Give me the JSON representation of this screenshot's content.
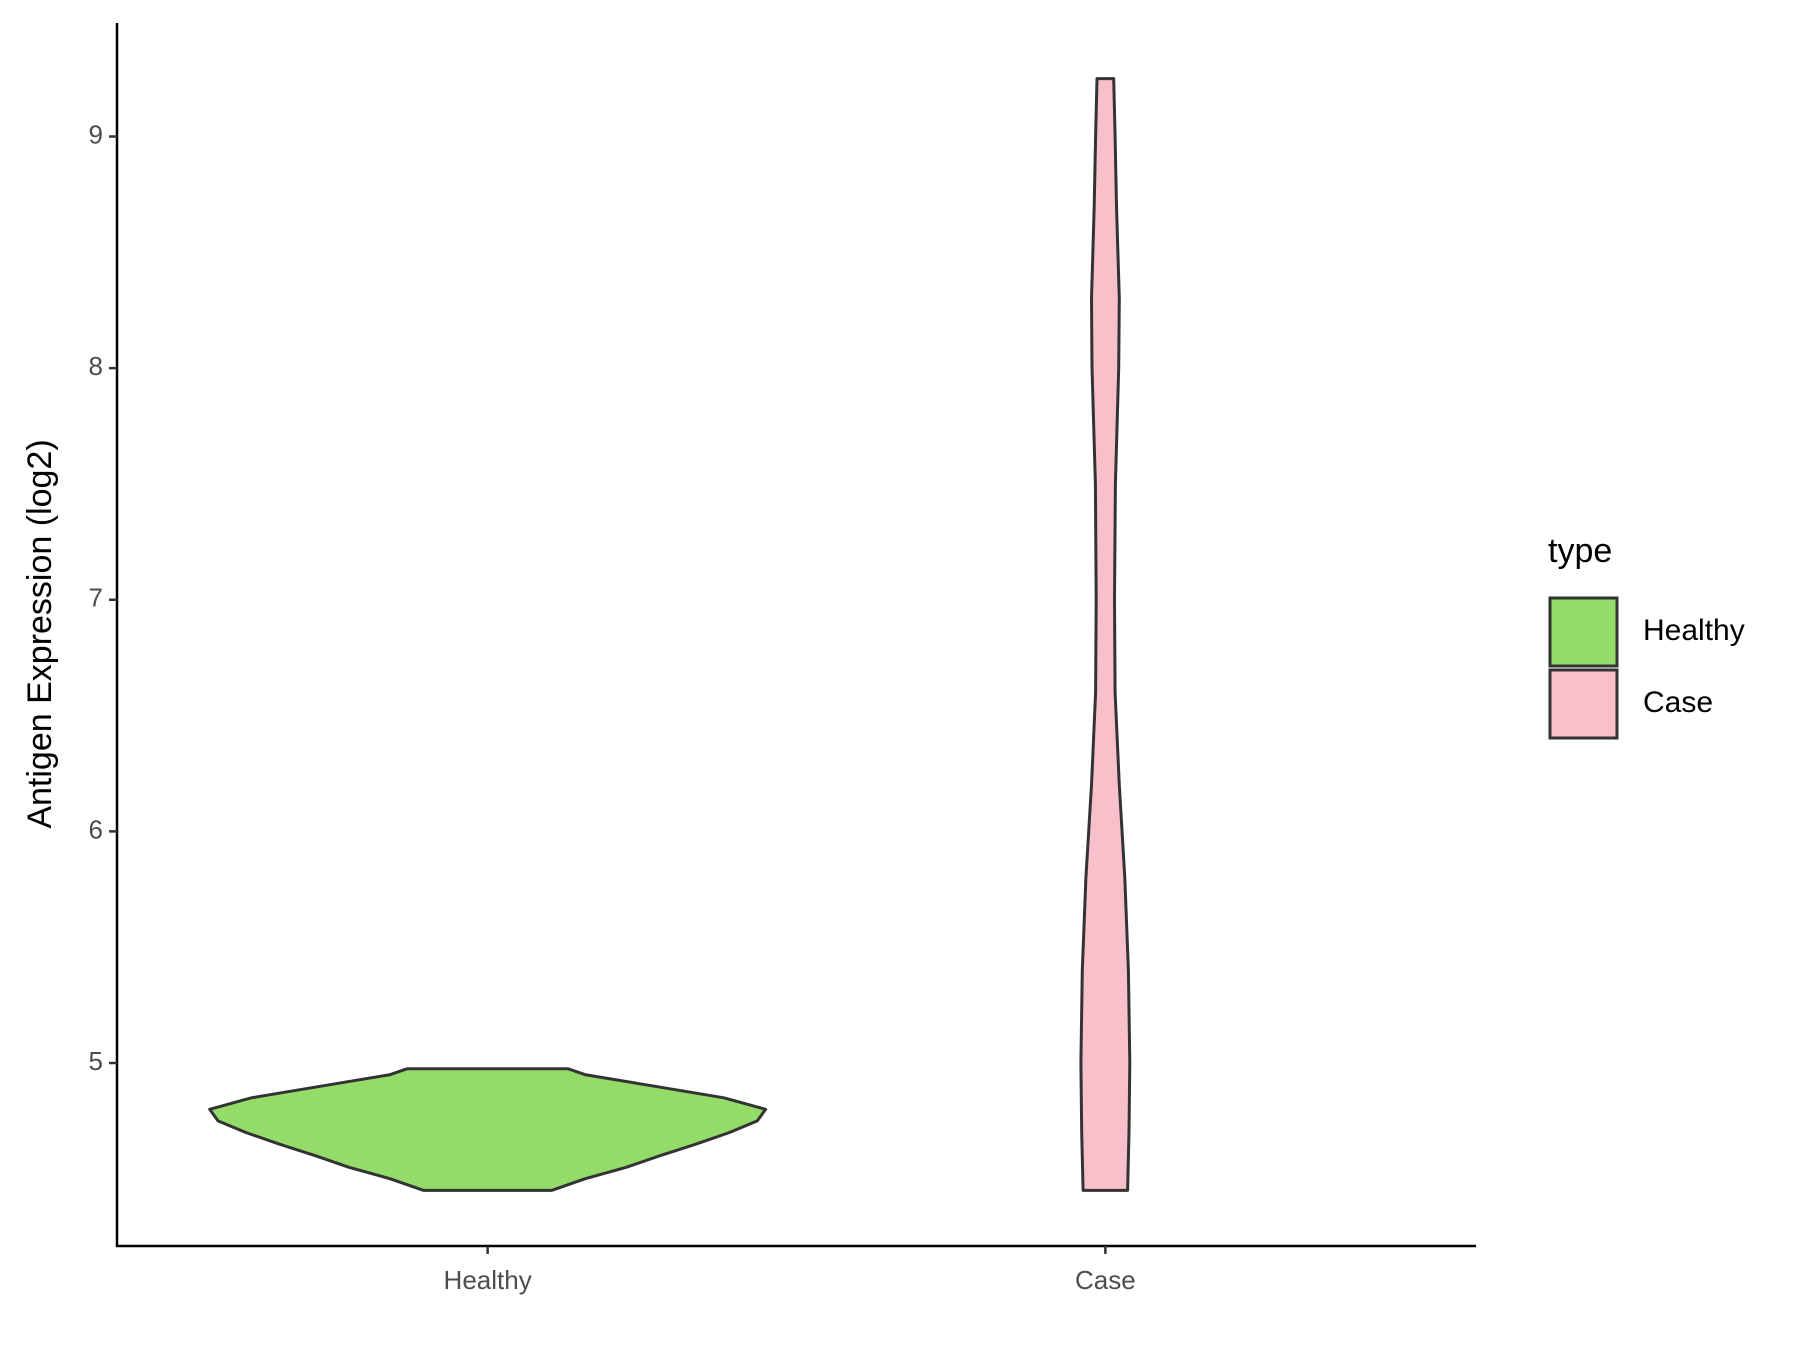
{
  "chart_data": {
    "type": "violin",
    "y_label": "Antigen Expression (log2)",
    "categories": [
      "Healthy",
      "Case"
    ],
    "series": [
      {
        "name": "Healthy",
        "color": "#93dc6a",
        "y": [
          4.45,
          4.5,
          4.55,
          4.6,
          4.65,
          4.7,
          4.75,
          4.8,
          4.85,
          4.9,
          4.95,
          4.975
        ],
        "density": [
          0.23,
          0.35,
          0.5,
          0.62,
          0.75,
          0.87,
          0.97,
          1,
          0.85,
          0.6,
          0.35,
          0.29
        ]
      },
      {
        "name": "Case",
        "color": "#f7c0cb",
        "y": [
          4.45,
          4.7,
          5.0,
          5.4,
          5.8,
          6.2,
          6.6,
          7.0,
          7.5,
          8.0,
          8.3,
          8.7,
          9.0,
          9.25
        ],
        "density": [
          0.08,
          0.085,
          0.088,
          0.083,
          0.07,
          0.05,
          0.035,
          0.033,
          0.036,
          0.048,
          0.05,
          0.04,
          0.035,
          0.03
        ]
      }
    ],
    "ylim": [
      4.21,
      9.49
    ],
    "yticks": [
      5,
      6,
      7,
      8,
      9
    ],
    "legend": {
      "title": "type",
      "position": "right"
    }
  }
}
